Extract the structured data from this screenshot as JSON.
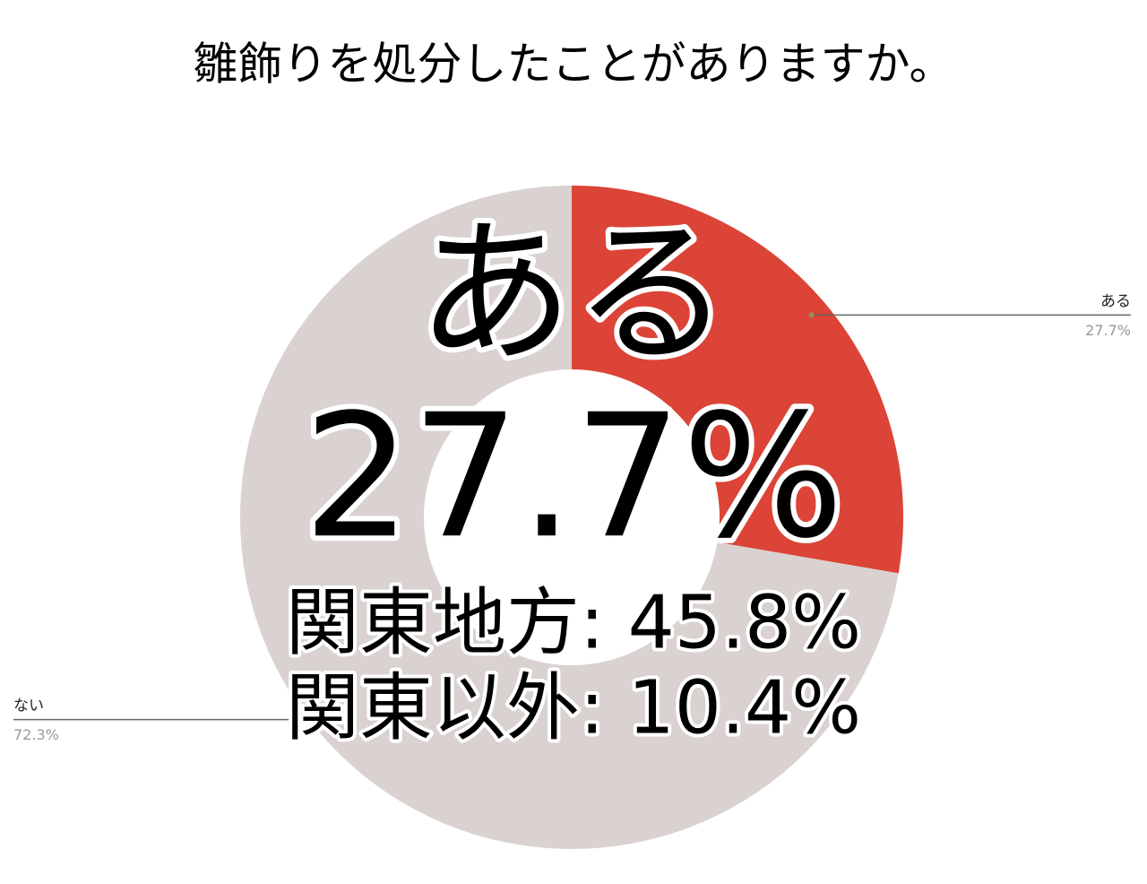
{
  "chart_data": {
    "type": "donut",
    "title": "雛飾りを処分したことがありますか。",
    "categories": [
      "ある",
      "ない"
    ],
    "values": [
      27.7,
      72.3
    ],
    "value_labels": [
      "27.7%",
      "72.3%"
    ],
    "colors": [
      "#db4437",
      "#d9d2d0"
    ],
    "annotations": [
      "ある",
      "27.7%",
      "関東地方: 45.8%",
      "関東以外: 10.4%"
    ]
  }
}
